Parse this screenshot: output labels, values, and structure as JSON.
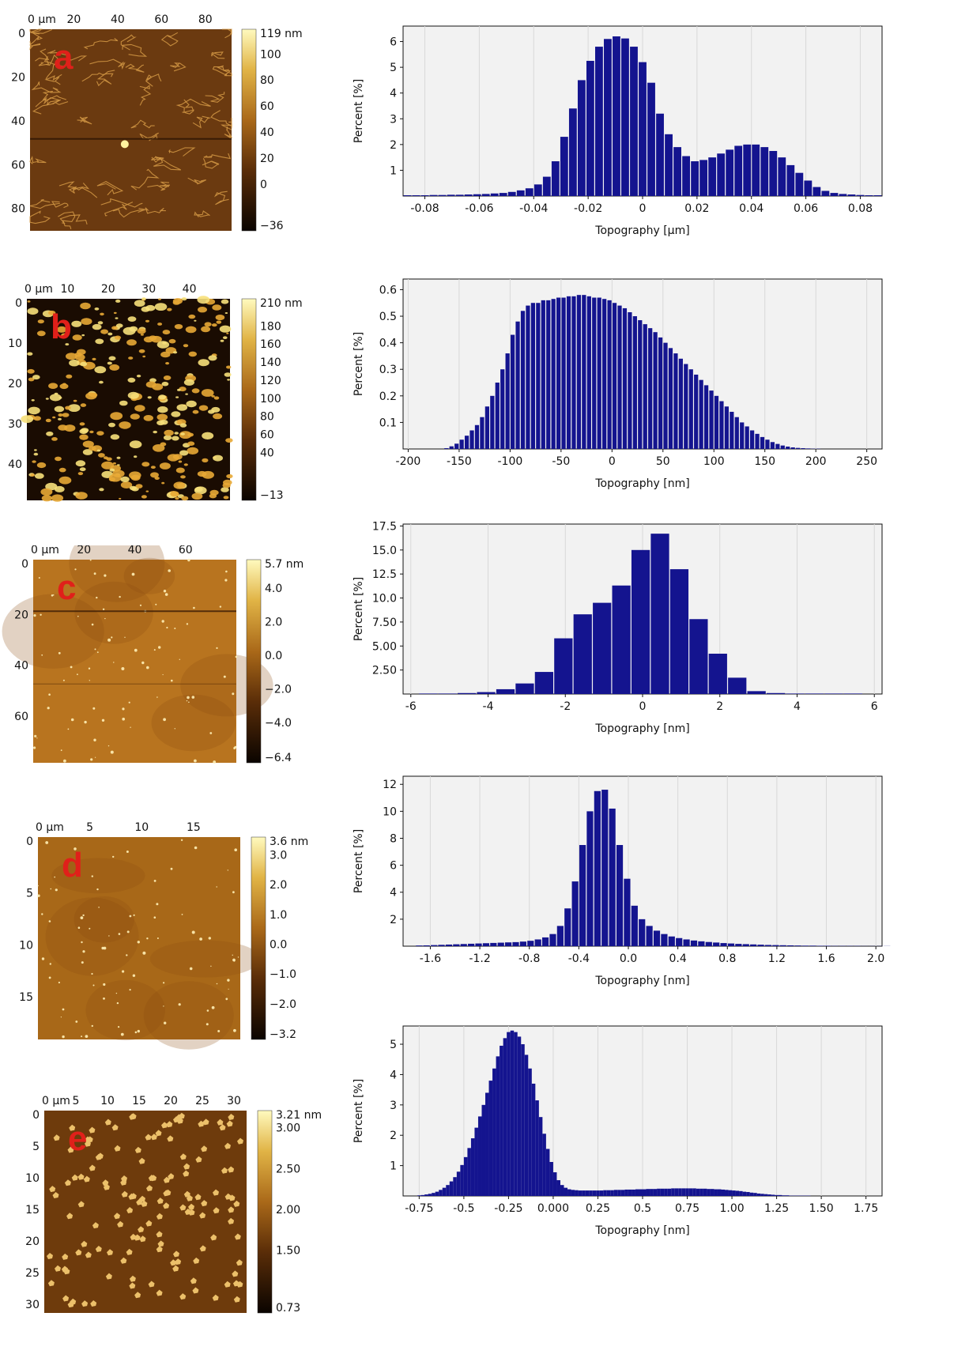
{
  "chart_data": [
    {
      "panel": "a",
      "type": "bar",
      "image": {
        "x_ticks": [
          {
            "v": 0,
            "t": "0 µm"
          },
          {
            "v": 20,
            "t": "20"
          },
          {
            "v": 40,
            "t": "40"
          },
          {
            "v": 60,
            "t": "60"
          },
          {
            "v": 80,
            "t": "80"
          }
        ],
        "x_max": 92,
        "y_ticks": [
          {
            "v": 0,
            "t": "0"
          },
          {
            "v": 20,
            "t": "20"
          },
          {
            "v": 40,
            "t": "40"
          },
          {
            "v": 60,
            "t": "60"
          },
          {
            "v": 80,
            "t": "80"
          }
        ],
        "y_max": 92,
        "colorbar_labels": [
          "119 nm",
          "100",
          "80",
          "60",
          "40",
          "20",
          "0",
          "−36"
        ],
        "colorbar_values": [
          119,
          100,
          80,
          60,
          40,
          20,
          0,
          -36
        ],
        "colorbar_range": [
          -36,
          119
        ],
        "background": "#6b3a10",
        "pattern": "network"
      },
      "histogram": {
        "xlabel": "Topography [µm]",
        "ylabel": "Percent [%]",
        "xlim": [
          -0.088,
          0.088
        ],
        "ylim": [
          0,
          6.6
        ],
        "x_ticks": [
          {
            "v": -0.08,
            "t": "-0.08"
          },
          {
            "v": -0.06,
            "t": "-0.06"
          },
          {
            "v": -0.04,
            "t": "-0.04"
          },
          {
            "v": -0.02,
            "t": "-0.02"
          },
          {
            "v": 0,
            "t": "0"
          },
          {
            "v": 0.02,
            "t": "0.02"
          },
          {
            "v": 0.04,
            "t": "0.04"
          },
          {
            "v": 0.06,
            "t": "0.06"
          },
          {
            "v": 0.08,
            "t": "0.08"
          }
        ],
        "y_ticks": [
          {
            "v": 1,
            "t": "1"
          },
          {
            "v": 2,
            "t": "2"
          },
          {
            "v": 3,
            "t": "3"
          },
          {
            "v": 4,
            "t": "4"
          },
          {
            "v": 5,
            "t": "5"
          },
          {
            "v": 6,
            "t": "6"
          }
        ],
        "bin_start": -0.088,
        "bin_width": 0.0032,
        "values": [
          0.03,
          0.03,
          0.03,
          0.04,
          0.04,
          0.05,
          0.05,
          0.06,
          0.07,
          0.08,
          0.1,
          0.12,
          0.16,
          0.22,
          0.3,
          0.45,
          0.75,
          1.35,
          2.3,
          3.4,
          4.5,
          5.25,
          5.8,
          6.1,
          6.2,
          6.12,
          5.8,
          5.2,
          4.4,
          3.2,
          2.4,
          1.9,
          1.55,
          1.35,
          1.4,
          1.5,
          1.65,
          1.8,
          1.95,
          2.0,
          2.0,
          1.9,
          1.75,
          1.5,
          1.2,
          0.9,
          0.6,
          0.35,
          0.2,
          0.12,
          0.08,
          0.06,
          0.04,
          0.03,
          0.03
        ]
      }
    },
    {
      "panel": "b",
      "type": "bar",
      "image": {
        "x_ticks": [
          {
            "v": 0,
            "t": "0 µm"
          },
          {
            "v": 10,
            "t": "10"
          },
          {
            "v": 20,
            "t": "20"
          },
          {
            "v": 30,
            "t": "30"
          },
          {
            "v": 40,
            "t": "40"
          }
        ],
        "x_max": 50,
        "y_ticks": [
          {
            "v": 0,
            "t": "0"
          },
          {
            "v": 10,
            "t": "10"
          },
          {
            "v": 20,
            "t": "20"
          },
          {
            "v": 30,
            "t": "30"
          },
          {
            "v": 40,
            "t": "40"
          }
        ],
        "y_max": 50,
        "colorbar_labels": [
          "210 nm",
          "180",
          "160",
          "140",
          "120",
          "100",
          "80",
          "60",
          "40",
          "−13"
        ],
        "colorbar_values": [
          210,
          180,
          160,
          140,
          120,
          100,
          80,
          60,
          40,
          -13
        ],
        "colorbar_range": [
          -13,
          210
        ],
        "background": "#1a0c02",
        "pattern": "clusters"
      },
      "histogram": {
        "xlabel": "Topography [nm]",
        "ylabel": "Percent [%]",
        "xlim": [
          -205,
          265
        ],
        "ylim": [
          0,
          0.64
        ],
        "x_ticks": [
          {
            "v": -200,
            "t": "-200"
          },
          {
            "v": -150,
            "t": "-150"
          },
          {
            "v": -100,
            "t": "-100"
          },
          {
            "v": -50,
            "t": "-50"
          },
          {
            "v": 0,
            "t": "0"
          },
          {
            "v": 50,
            "t": "50"
          },
          {
            "v": 100,
            "t": "100"
          },
          {
            "v": 150,
            "t": "150"
          },
          {
            "v": 200,
            "t": "200"
          },
          {
            "v": 250,
            "t": "250"
          }
        ],
        "y_ticks": [
          {
            "v": 0.1,
            "t": "0.1"
          },
          {
            "v": 0.2,
            "t": "0.2"
          },
          {
            "v": 0.3,
            "t": "0.3"
          },
          {
            "v": 0.4,
            "t": "0.4"
          },
          {
            "v": 0.5,
            "t": "0.5"
          },
          {
            "v": 0.6,
            "t": "0.6"
          }
        ],
        "bin_start": -165,
        "bin_width": 5,
        "values": [
          0.003,
          0.01,
          0.02,
          0.035,
          0.05,
          0.07,
          0.09,
          0.12,
          0.16,
          0.2,
          0.25,
          0.3,
          0.36,
          0.43,
          0.48,
          0.52,
          0.54,
          0.55,
          0.55,
          0.56,
          0.56,
          0.565,
          0.57,
          0.57,
          0.575,
          0.575,
          0.58,
          0.58,
          0.575,
          0.57,
          0.57,
          0.565,
          0.56,
          0.55,
          0.54,
          0.53,
          0.515,
          0.5,
          0.485,
          0.47,
          0.455,
          0.44,
          0.42,
          0.4,
          0.38,
          0.36,
          0.34,
          0.32,
          0.3,
          0.28,
          0.26,
          0.24,
          0.22,
          0.2,
          0.18,
          0.16,
          0.14,
          0.12,
          0.1,
          0.085,
          0.07,
          0.057,
          0.045,
          0.035,
          0.026,
          0.019,
          0.013,
          0.009,
          0.006,
          0.004,
          0.003,
          0.002,
          0.001,
          0.001
        ]
      }
    },
    {
      "panel": "c",
      "type": "bar",
      "image": {
        "x_ticks": [
          {
            "v": 0,
            "t": "0 µm"
          },
          {
            "v": 20,
            "t": "20"
          },
          {
            "v": 40,
            "t": "40"
          },
          {
            "v": 60,
            "t": "60"
          }
        ],
        "x_max": 80,
        "y_ticks": [
          {
            "v": 0,
            "t": "0"
          },
          {
            "v": 20,
            "t": "20"
          },
          {
            "v": 40,
            "t": "40"
          },
          {
            "v": 60,
            "t": "60"
          }
        ],
        "y_max": 80,
        "colorbar_labels": [
          "5.7 nm",
          "4.0",
          "2.0",
          "0.0",
          "−2.0",
          "−4.0",
          "−6.4"
        ],
        "colorbar_values": [
          5.7,
          4.0,
          2.0,
          0.0,
          -2.0,
          -4.0,
          -6.4
        ],
        "colorbar_range": [
          -6.4,
          5.7
        ],
        "background": "#b8741f",
        "pattern": "dots"
      },
      "histogram": {
        "xlabel": "Topography [nm]",
        "ylabel": "Percent [%]",
        "xlim": [
          -6.2,
          6.2
        ],
        "ylim": [
          0,
          17.7
        ],
        "x_ticks": [
          {
            "v": -6,
            "t": "-6"
          },
          {
            "v": -4,
            "t": "-4"
          },
          {
            "v": -2,
            "t": "-2"
          },
          {
            "v": 0,
            "t": "0"
          },
          {
            "v": 2,
            "t": "2"
          },
          {
            "v": 4,
            "t": "4"
          },
          {
            "v": 6,
            "t": "6"
          }
        ],
        "y_ticks": [
          {
            "v": 2.5,
            "t": "2.50"
          },
          {
            "v": 5,
            "t": "5.00"
          },
          {
            "v": 7.5,
            "t": "7.50"
          },
          {
            "v": 10,
            "t": "10.0"
          },
          {
            "v": 12.5,
            "t": "12.5"
          },
          {
            "v": 15,
            "t": "15.0"
          },
          {
            "v": 17.5,
            "t": "17.5"
          }
        ],
        "bin_start": -5.8,
        "bin_width": 0.5,
        "values": [
          0.05,
          0.05,
          0.1,
          0.2,
          0.5,
          1.1,
          2.3,
          5.8,
          8.3,
          9.5,
          11.3,
          15.0,
          16.7,
          13.0,
          7.8,
          4.2,
          1.7,
          0.3,
          0.1,
          0.05,
          0.05,
          0.05,
          0.05
        ]
      }
    },
    {
      "panel": "d",
      "type": "bar",
      "image": {
        "x_ticks": [
          {
            "v": 0,
            "t": "0 µm"
          },
          {
            "v": 5,
            "t": "5"
          },
          {
            "v": 10,
            "t": "10"
          },
          {
            "v": 15,
            "t": "15"
          }
        ],
        "x_max": 19.5,
        "y_ticks": [
          {
            "v": 0,
            "t": "0"
          },
          {
            "v": 5,
            "t": "5"
          },
          {
            "v": 10,
            "t": "10"
          },
          {
            "v": 15,
            "t": "15"
          }
        ],
        "y_max": 19.5,
        "colorbar_labels": [
          "3.6 nm",
          "3.0",
          "2.0",
          "1.0",
          "0.0",
          "−1.0",
          "−2.0",
          "−3.2"
        ],
        "colorbar_values": [
          3.6,
          3.0,
          2.0,
          1.0,
          0.0,
          -1.0,
          -2.0,
          -3.2
        ],
        "colorbar_range": [
          -3.2,
          3.6
        ],
        "background": "#a86818",
        "pattern": "dots"
      },
      "histogram": {
        "xlabel": "Topography [nm]",
        "ylabel": "Percent [%]",
        "xlim": [
          -1.82,
          2.05
        ],
        "ylim": [
          0,
          12.6
        ],
        "x_ticks": [
          {
            "v": -1.6,
            "t": "-1.6"
          },
          {
            "v": -1.2,
            "t": "-1.2"
          },
          {
            "v": -0.8,
            "t": "-0.8"
          },
          {
            "v": -0.4,
            "t": "-0.4"
          },
          {
            "v": 0,
            "t": "0.0"
          },
          {
            "v": 0.4,
            "t": "0.4"
          },
          {
            "v": 0.8,
            "t": "0.8"
          },
          {
            "v": 1.2,
            "t": "1.2"
          },
          {
            "v": 1.6,
            "t": "1.6"
          },
          {
            "v": 2.0,
            "t": "2.0"
          }
        ],
        "y_ticks": [
          {
            "v": 2,
            "t": "2"
          },
          {
            "v": 4,
            "t": "4"
          },
          {
            "v": 6,
            "t": "6"
          },
          {
            "v": 8,
            "t": "8"
          },
          {
            "v": 10,
            "t": "10"
          },
          {
            "v": 12,
            "t": "12"
          }
        ],
        "bin_start": -1.72,
        "bin_width": 0.06,
        "values": [
          0.05,
          0.06,
          0.08,
          0.1,
          0.12,
          0.14,
          0.16,
          0.18,
          0.2,
          0.22,
          0.24,
          0.26,
          0.28,
          0.3,
          0.34,
          0.4,
          0.5,
          0.65,
          0.9,
          1.5,
          2.8,
          4.8,
          7.5,
          10.0,
          11.5,
          11.6,
          10.2,
          7.5,
          5.0,
          3.0,
          2.0,
          1.5,
          1.15,
          0.9,
          0.72,
          0.6,
          0.5,
          0.42,
          0.36,
          0.31,
          0.27,
          0.23,
          0.2,
          0.17,
          0.15,
          0.13,
          0.11,
          0.09,
          0.08,
          0.07,
          0.06,
          0.05,
          0.04,
          0.04,
          0.03,
          0.03,
          0.02,
          0.02,
          0.02,
          0.02,
          0.01,
          0.01,
          0.01,
          0.01
        ]
      }
    },
    {
      "panel": "e",
      "type": "bar",
      "image": {
        "x_ticks": [
          {
            "v": 0,
            "t": "0 µm"
          },
          {
            "v": 5,
            "t": "5"
          },
          {
            "v": 10,
            "t": "10"
          },
          {
            "v": 15,
            "t": "15"
          },
          {
            "v": 20,
            "t": "20"
          },
          {
            "v": 25,
            "t": "25"
          },
          {
            "v": 30,
            "t": "30"
          }
        ],
        "x_max": 32,
        "y_ticks": [
          {
            "v": 0,
            "t": "0"
          },
          {
            "v": 5,
            "t": "5"
          },
          {
            "v": 10,
            "t": "10"
          },
          {
            "v": 15,
            "t": "15"
          },
          {
            "v": 20,
            "t": "20"
          },
          {
            "v": 25,
            "t": "25"
          },
          {
            "v": 30,
            "t": "30"
          }
        ],
        "y_max": 32,
        "colorbar_labels": [
          "3.21 nm",
          "3.00",
          "2.50",
          "2.00",
          "1.50",
          "0.73"
        ],
        "colorbar_values": [
          3.21,
          3.0,
          2.5,
          2.0,
          1.5,
          0.73
        ],
        "colorbar_range": [
          0.73,
          3.21
        ],
        "background": "#6e3b0c",
        "pattern": "flakes"
      },
      "histogram": {
        "xlabel": "Topography [nm]",
        "ylabel": "Percent [%]",
        "xlim": [
          -0.84,
          1.84
        ],
        "ylim": [
          0,
          5.6
        ],
        "x_ticks": [
          {
            "v": -0.75,
            "t": "-0.75"
          },
          {
            "v": -0.5,
            "t": "-0.5"
          },
          {
            "v": -0.25,
            "t": "-0.25"
          },
          {
            "v": 0,
            "t": "0.000"
          },
          {
            "v": 0.25,
            "t": "0.25"
          },
          {
            "v": 0.5,
            "t": "0.5"
          },
          {
            "v": 0.75,
            "t": "0.75"
          },
          {
            "v": 1.0,
            "t": "1.00"
          },
          {
            "v": 1.25,
            "t": "1.25"
          },
          {
            "v": 1.5,
            "t": "1.50"
          },
          {
            "v": 1.75,
            "t": "1.75"
          }
        ],
        "y_ticks": [
          {
            "v": 1,
            "t": "1"
          },
          {
            "v": 2,
            "t": "2"
          },
          {
            "v": 3,
            "t": "3"
          },
          {
            "v": 4,
            "t": "4"
          },
          {
            "v": 5,
            "t": "5"
          }
        ],
        "bin_start": -0.76,
        "bin_width": 0.02,
        "values": [
          0.02,
          0.03,
          0.05,
          0.07,
          0.1,
          0.14,
          0.2,
          0.27,
          0.36,
          0.48,
          0.62,
          0.8,
          1.02,
          1.28,
          1.58,
          1.9,
          2.25,
          2.62,
          3.0,
          3.4,
          3.8,
          4.2,
          4.6,
          4.95,
          5.2,
          5.4,
          5.45,
          5.4,
          5.25,
          5.0,
          4.65,
          4.2,
          3.7,
          3.15,
          2.6,
          2.05,
          1.55,
          1.12,
          0.78,
          0.52,
          0.36,
          0.27,
          0.22,
          0.2,
          0.19,
          0.18,
          0.18,
          0.18,
          0.18,
          0.18,
          0.18,
          0.18,
          0.19,
          0.19,
          0.19,
          0.2,
          0.2,
          0.2,
          0.21,
          0.21,
          0.21,
          0.22,
          0.22,
          0.22,
          0.23,
          0.23,
          0.23,
          0.24,
          0.24,
          0.24,
          0.24,
          0.25,
          0.25,
          0.25,
          0.25,
          0.25,
          0.25,
          0.25,
          0.24,
          0.24,
          0.24,
          0.23,
          0.23,
          0.22,
          0.22,
          0.21,
          0.2,
          0.19,
          0.18,
          0.17,
          0.16,
          0.14,
          0.13,
          0.11,
          0.1,
          0.08,
          0.07,
          0.06,
          0.05,
          0.04,
          0.03,
          0.03,
          0.02,
          0.02,
          0.01,
          0.01,
          0.01,
          0.01,
          0.01,
          0.01
        ]
      }
    }
  ]
}
